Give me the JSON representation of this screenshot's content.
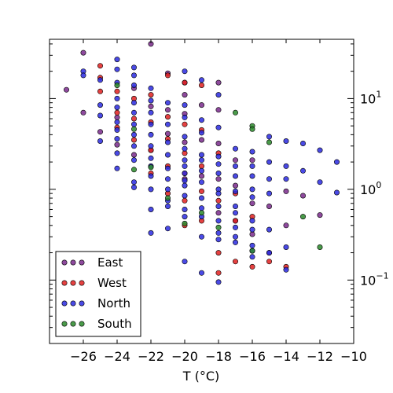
{
  "chart_data": {
    "type": "scatter",
    "xlabel": "T (°C)",
    "xlim": [
      -28,
      -10
    ],
    "ylim": [
      0.02,
      45
    ],
    "y_scale": "log",
    "y_axis_side": "right",
    "grid": false,
    "legend_placement": "lower-left",
    "x_ticks": [
      {
        "value": -26,
        "label": "−26"
      },
      {
        "value": -24,
        "label": "−24"
      },
      {
        "value": -22,
        "label": "−22"
      },
      {
        "value": -20,
        "label": "−20"
      },
      {
        "value": -18,
        "label": "−18"
      },
      {
        "value": -16,
        "label": "−16"
      },
      {
        "value": -14,
        "label": "−14"
      },
      {
        "value": -12,
        "label": "−12"
      },
      {
        "value": -10,
        "label": "−10"
      }
    ],
    "y_ticks": [
      {
        "value": 0.1,
        "base": "10",
        "exp": "−1"
      },
      {
        "value": 1,
        "base": "10",
        "exp": "0"
      },
      {
        "value": 10,
        "base": "10",
        "exp": "1"
      }
    ],
    "series": [
      {
        "name": "East",
        "color": "#7a2a8c",
        "points": [
          [
            -27,
            12.5
          ],
          [
            -26,
            32
          ],
          [
            -26,
            7
          ],
          [
            -25,
            4.3
          ],
          [
            -24,
            6.2
          ],
          [
            -24,
            3.1
          ],
          [
            -23,
            13
          ],
          [
            -23,
            2.4
          ],
          [
            -22,
            40
          ],
          [
            -22,
            8.2
          ],
          [
            -22,
            2.7
          ],
          [
            -21,
            19
          ],
          [
            -21,
            7.5
          ],
          [
            -21,
            4.1
          ],
          [
            -20,
            15
          ],
          [
            -20,
            11
          ],
          [
            -20,
            6.8
          ],
          [
            -20,
            3.3
          ],
          [
            -20,
            1.3
          ],
          [
            -19,
            8.5
          ],
          [
            -19,
            3.5
          ],
          [
            -19,
            1.4
          ],
          [
            -18,
            15
          ],
          [
            -18,
            7.5
          ],
          [
            -18,
            3.2
          ],
          [
            -18,
            1.3
          ],
          [
            -18,
            0.55
          ],
          [
            -17,
            2.1
          ],
          [
            -17,
            1.1
          ],
          [
            -17,
            0.45
          ],
          [
            -16,
            2.1
          ],
          [
            -16,
            0.7
          ],
          [
            -16,
            0.32
          ],
          [
            -15,
            0.65
          ],
          [
            -15,
            0.2
          ],
          [
            -14,
            0.95
          ],
          [
            -14,
            0.4
          ],
          [
            -13,
            0.85
          ],
          [
            -12,
            0.52
          ]
        ]
      },
      {
        "name": "West",
        "color": "#e02020",
        "points": [
          [
            -25,
            23
          ],
          [
            -25,
            17
          ],
          [
            -25,
            12
          ],
          [
            -24,
            12
          ],
          [
            -24,
            7
          ],
          [
            -24,
            4.8
          ],
          [
            -23,
            10
          ],
          [
            -23,
            6
          ],
          [
            -23,
            3.5
          ],
          [
            -22,
            11
          ],
          [
            -22,
            5.5
          ],
          [
            -22,
            2.7
          ],
          [
            -22,
            1.5
          ],
          [
            -21,
            18
          ],
          [
            -21,
            6.3
          ],
          [
            -21,
            3.6
          ],
          [
            -21,
            1.8
          ],
          [
            -21,
            0.9
          ],
          [
            -20,
            15
          ],
          [
            -20,
            5.2
          ],
          [
            -20,
            2.5
          ],
          [
            -20,
            1.5
          ],
          [
            -20,
            0.75
          ],
          [
            -20,
            0.4
          ],
          [
            -19,
            14
          ],
          [
            -19,
            4.5
          ],
          [
            -19,
            1.8
          ],
          [
            -19,
            0.95
          ],
          [
            -19,
            0.45
          ],
          [
            -18,
            2.5
          ],
          [
            -18,
            0.75
          ],
          [
            -18,
            0.2
          ],
          [
            -18,
            0.12
          ],
          [
            -17,
            0.9
          ],
          [
            -17,
            0.45
          ],
          [
            -17,
            0.16
          ],
          [
            -16,
            0.5
          ],
          [
            -16,
            0.14
          ],
          [
            -15,
            0.16
          ],
          [
            -14,
            0.14
          ]
        ]
      },
      {
        "name": "North",
        "color": "#2a2ae0",
        "points": [
          [
            -26,
            20
          ],
          [
            -26,
            18
          ],
          [
            -25,
            16
          ],
          [
            -25,
            8.5
          ],
          [
            -25,
            6.5
          ],
          [
            -25,
            3.4
          ],
          [
            -24,
            27
          ],
          [
            -24,
            21
          ],
          [
            -24,
            15
          ],
          [
            -24,
            10
          ],
          [
            -24,
            8
          ],
          [
            -24,
            5.5
          ],
          [
            -24,
            4.5
          ],
          [
            -24,
            3.6
          ],
          [
            -24,
            2.5
          ],
          [
            -24,
            1.7
          ],
          [
            -23,
            22
          ],
          [
            -23,
            18
          ],
          [
            -23,
            14
          ],
          [
            -23,
            9
          ],
          [
            -23,
            7
          ],
          [
            -23,
            5.2
          ],
          [
            -23,
            4
          ],
          [
            -23,
            3
          ],
          [
            -23,
            2.1
          ],
          [
            -23,
            1.2
          ],
          [
            -23,
            1.05
          ],
          [
            -22,
            13
          ],
          [
            -22,
            9.5
          ],
          [
            -22,
            7
          ],
          [
            -22,
            5.2
          ],
          [
            -22,
            4
          ],
          [
            -22,
            3
          ],
          [
            -22,
            2.2
          ],
          [
            -22,
            1.8
          ],
          [
            -22,
            1.4
          ],
          [
            -22,
            1.0
          ],
          [
            -22,
            0.6
          ],
          [
            -22,
            0.33
          ],
          [
            -21,
            9
          ],
          [
            -21,
            5.2
          ],
          [
            -21,
            3.3
          ],
          [
            -21,
            2.4
          ],
          [
            -21,
            1.7
          ],
          [
            -21,
            1.3
          ],
          [
            -21,
            1.0
          ],
          [
            -21,
            0.75
          ],
          [
            -21,
            0.65
          ],
          [
            -21,
            0.37
          ],
          [
            -20,
            20
          ],
          [
            -20,
            8.5
          ],
          [
            -20,
            6.2
          ],
          [
            -20,
            3.8
          ],
          [
            -20,
            2.8
          ],
          [
            -20,
            2.1
          ],
          [
            -20,
            1.8
          ],
          [
            -20,
            1.5
          ],
          [
            -20,
            1.25
          ],
          [
            -20,
            1.1
          ],
          [
            -20,
            0.85
          ],
          [
            -20,
            0.6
          ],
          [
            -20,
            0.5
          ],
          [
            -20,
            0.16
          ],
          [
            -19,
            16
          ],
          [
            -19,
            5.8
          ],
          [
            -19,
            4.2
          ],
          [
            -19,
            2.4
          ],
          [
            -19,
            2.1
          ],
          [
            -19,
            1.6
          ],
          [
            -19,
            1.2
          ],
          [
            -19,
            0.8
          ],
          [
            -19,
            0.62
          ],
          [
            -19,
            0.5
          ],
          [
            -19,
            0.3
          ],
          [
            -19,
            0.12
          ],
          [
            -18,
            11
          ],
          [
            -18,
            4.8
          ],
          [
            -18,
            2.3
          ],
          [
            -18,
            1.9
          ],
          [
            -18,
            1.5
          ],
          [
            -18,
            1.0
          ],
          [
            -18,
            0.9
          ],
          [
            -18,
            0.65
          ],
          [
            -18,
            0.45
          ],
          [
            -18,
            0.33
          ],
          [
            -18,
            0.28
          ],
          [
            -18,
            0.095
          ],
          [
            -17,
            2.8
          ],
          [
            -17,
            1.8
          ],
          [
            -17,
            1.4
          ],
          [
            -17,
            0.95
          ],
          [
            -17,
            0.65
          ],
          [
            -17,
            0.55
          ],
          [
            -17,
            0.38
          ],
          [
            -17,
            0.3
          ],
          [
            -17,
            0.26
          ],
          [
            -16,
            2.6
          ],
          [
            -16,
            1.8
          ],
          [
            -16,
            1.4
          ],
          [
            -16,
            1.0
          ],
          [
            -16,
            0.82
          ],
          [
            -16,
            0.45
          ],
          [
            -16,
            0.36
          ],
          [
            -16,
            0.24
          ],
          [
            -16,
            0.21
          ],
          [
            -16,
            0.18
          ],
          [
            -15,
            3.8
          ],
          [
            -15,
            2.0
          ],
          [
            -15,
            1.3
          ],
          [
            -15,
            0.9
          ],
          [
            -15,
            0.36
          ],
          [
            -15,
            0.2
          ],
          [
            -14,
            3.4
          ],
          [
            -14,
            1.8
          ],
          [
            -14,
            1.3
          ],
          [
            -14,
            0.23
          ],
          [
            -14,
            0.13
          ],
          [
            -13,
            3.2
          ],
          [
            -13,
            1.6
          ],
          [
            -12,
            2.7
          ],
          [
            -12,
            1.2
          ],
          [
            -11,
            2.0
          ],
          [
            -11,
            0.92
          ]
        ]
      },
      {
        "name": "South",
        "color": "#2a8a2a",
        "points": [
          [
            -24,
            14
          ],
          [
            -23,
            4.6
          ],
          [
            -23,
            1.65
          ],
          [
            -22,
            1.75
          ],
          [
            -21,
            0.8
          ],
          [
            -20,
            0.42
          ],
          [
            -19,
            0.55
          ],
          [
            -18,
            0.38
          ],
          [
            -17,
            7
          ],
          [
            -16,
            5
          ],
          [
            -16,
            4.6
          ],
          [
            -16,
            0.21
          ],
          [
            -15,
            3.3
          ],
          [
            -13,
            0.5
          ],
          [
            -12,
            0.23
          ]
        ]
      }
    ]
  }
}
